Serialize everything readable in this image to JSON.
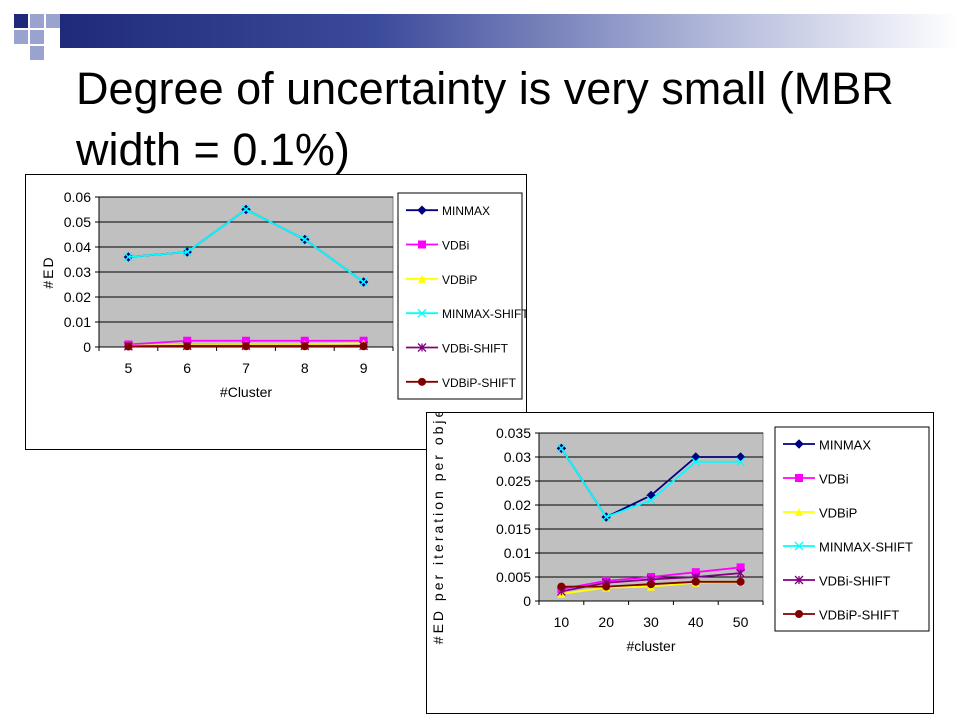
{
  "slide": {
    "title": "Degree of uncertainty is very small (MBR width = 0.1%)",
    "accent_colors": {
      "dark_blue": "#1f2a7a",
      "light_blue": "#aab1d6",
      "square_dark": "#1f2a7a",
      "square_light": "#9aa3cf"
    }
  },
  "chart_data": [
    {
      "type": "line",
      "title": "",
      "xlabel": "#Cluster",
      "ylabel": "#ED",
      "x": [
        5,
        6,
        7,
        8,
        9
      ],
      "ylim": [
        0,
        0.06
      ],
      "yticks": [
        "0",
        "0.01",
        "0.02",
        "0.03",
        "0.04",
        "0.05",
        "0.06"
      ],
      "grid": true,
      "legend_position": "right",
      "series": [
        {
          "name": "MINMAX",
          "values": [
            0.036,
            0.038,
            0.055,
            0.043,
            0.026
          ],
          "color": "#000080",
          "marker": "diamond"
        },
        {
          "name": "VDBi",
          "values": [
            0.001,
            0.0025,
            0.0025,
            0.0025,
            0.0025
          ],
          "color": "#ff00ff",
          "marker": "square"
        },
        {
          "name": "VDBiP",
          "values": [
            0.0005,
            0.0008,
            0.001,
            0.001,
            0.0015
          ],
          "color": "#ffff00",
          "marker": "triangle"
        },
        {
          "name": "MINMAX-SHIFT",
          "values": [
            0.036,
            0.038,
            0.055,
            0.043,
            0.026
          ],
          "color": "#00ffff",
          "marker": "x"
        },
        {
          "name": "VDBi-SHIFT",
          "values": [
            0.0003,
            0.0005,
            0.0005,
            0.0005,
            0.0005
          ],
          "color": "#800080",
          "marker": "star"
        },
        {
          "name": "VDBiP-SHIFT",
          "values": [
            0.0002,
            0.0003,
            0.0003,
            0.0003,
            0.0003
          ],
          "color": "#800000",
          "marker": "circle"
        }
      ]
    },
    {
      "type": "line",
      "title": "",
      "xlabel": "#cluster",
      "ylabel": "#ED per iteration per object",
      "x": [
        10,
        20,
        30,
        40,
        50
      ],
      "ylim": [
        0,
        0.035
      ],
      "yticks": [
        "0",
        "0.005",
        "0.01",
        "0.015",
        "0.02",
        "0.025",
        "0.03",
        "0.035"
      ],
      "grid": true,
      "legend_position": "right",
      "series": [
        {
          "name": "MINMAX",
          "values": [
            0.0318,
            0.0175,
            0.022,
            0.03,
            0.03
          ],
          "color": "#000080",
          "marker": "diamond"
        },
        {
          "name": "VDBi",
          "values": [
            0.0025,
            0.0042,
            0.005,
            0.006,
            0.007
          ],
          "color": "#ff00ff",
          "marker": "square"
        },
        {
          "name": "VDBiP",
          "values": [
            0.0015,
            0.0028,
            0.003,
            0.0038,
            0.004
          ],
          "color": "#ffff00",
          "marker": "triangle"
        },
        {
          "name": "MINMAX-SHIFT",
          "values": [
            0.0318,
            0.0175,
            0.021,
            0.029,
            0.029
          ],
          "color": "#00ffff",
          "marker": "x"
        },
        {
          "name": "VDBi-SHIFT",
          "values": [
            0.002,
            0.0038,
            0.0045,
            0.005,
            0.0058
          ],
          "color": "#800080",
          "marker": "star"
        },
        {
          "name": "VDBiP-SHIFT",
          "values": [
            0.003,
            0.003,
            0.0035,
            0.004,
            0.004
          ],
          "color": "#800000",
          "marker": "circle"
        }
      ]
    }
  ]
}
